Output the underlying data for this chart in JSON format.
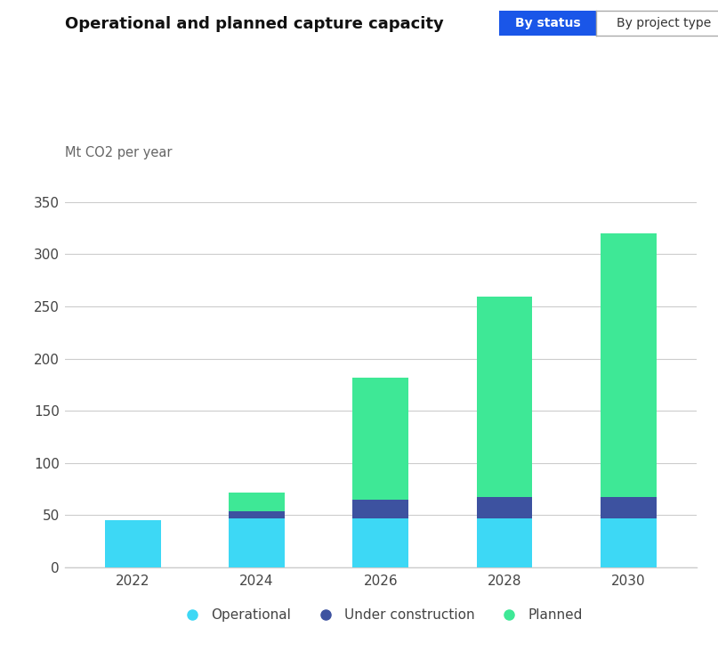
{
  "title": "Operational and planned capture capacity",
  "ylabel": "Mt CO2 per year",
  "button1": "By status",
  "button2": "By project type",
  "categories": [
    2022,
    2024,
    2026,
    2028,
    2030
  ],
  "operational": [
    45,
    47,
    47,
    47,
    47
  ],
  "under_construction": [
    0,
    7,
    18,
    20,
    20
  ],
  "planned": [
    0,
    18,
    117,
    192,
    253
  ],
  "color_operational": "#3DD8F5",
  "color_under_construction": "#3D52A0",
  "color_planned": "#3EE896",
  "ylim": [
    0,
    375
  ],
  "yticks": [
    0,
    50,
    100,
    150,
    200,
    250,
    300,
    350
  ],
  "background_color": "#ffffff",
  "grid_color": "#cccccc",
  "title_fontsize": 13,
  "label_fontsize": 10.5,
  "tick_fontsize": 11,
  "legend_fontsize": 11,
  "btn1_color": "#1A56E8",
  "btn1_text_color": "#ffffff",
  "btn2_color": "#ffffff",
  "btn2_text_color": "#333333"
}
